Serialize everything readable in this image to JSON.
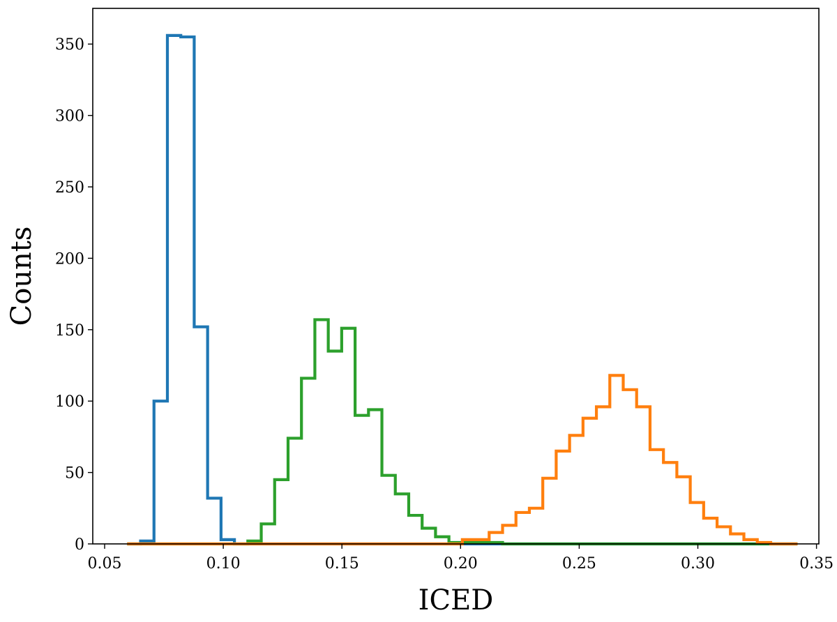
{
  "chart_data": {
    "type": "bar",
    "title": "",
    "xlabel": "ICED",
    "ylabel": "Counts",
    "xlim": [
      0.045,
      0.351
    ],
    "ylim": [
      0,
      375
    ],
    "xticks": [
      0.05,
      0.1,
      0.15,
      0.2,
      0.25,
      0.3,
      0.35
    ],
    "xtick_labels": [
      "0.05",
      "0.10",
      "0.15",
      "0.20",
      "0.25",
      "0.30",
      "0.35"
    ],
    "yticks": [
      0,
      50,
      100,
      150,
      200,
      250,
      300,
      350
    ],
    "ytick_labels": [
      "0",
      "50",
      "100",
      "150",
      "200",
      "250",
      "300",
      "350"
    ],
    "grid": false,
    "series": [
      {
        "color": "#1f77b4",
        "bin_start": 0.0595,
        "bin_width": 0.00565,
        "values": [
          0,
          2,
          100,
          356,
          355,
          152,
          32,
          3,
          0,
          0,
          0,
          0,
          0,
          0,
          0,
          0,
          0,
          0,
          0,
          0,
          0,
          0,
          0,
          0,
          0,
          0,
          0,
          0,
          0,
          0,
          0,
          0,
          0,
          0,
          0,
          0,
          0,
          0,
          0,
          0,
          0,
          0,
          0,
          0,
          0,
          0,
          0,
          0,
          0,
          0
        ]
      },
      {
        "color": "#2ca02c",
        "bin_start": 0.0595,
        "bin_width": 0.00565,
        "values": [
          0,
          0,
          0,
          0,
          0,
          0,
          0,
          0,
          0,
          2,
          14,
          45,
          74,
          116,
          157,
          135,
          151,
          90,
          94,
          48,
          35,
          20,
          11,
          5,
          1,
          1,
          1,
          1,
          0,
          0,
          0,
          0,
          0,
          0,
          0,
          0,
          0,
          0,
          0,
          0,
          0,
          0,
          0,
          0,
          0,
          0,
          0,
          0,
          0,
          0
        ]
      },
      {
        "color": "#ff7f0e",
        "bin_start": 0.0595,
        "bin_width": 0.00565,
        "values": [
          0,
          0,
          0,
          0,
          0,
          0,
          0,
          0,
          0,
          0,
          0,
          0,
          0,
          0,
          0,
          0,
          0,
          0,
          0,
          0,
          0,
          0,
          0,
          0,
          0,
          3,
          3,
          8,
          13,
          22,
          25,
          46,
          65,
          76,
          88,
          96,
          118,
          108,
          96,
          66,
          57,
          47,
          29,
          18,
          12,
          7,
          3,
          1,
          0,
          0
        ]
      }
    ]
  }
}
